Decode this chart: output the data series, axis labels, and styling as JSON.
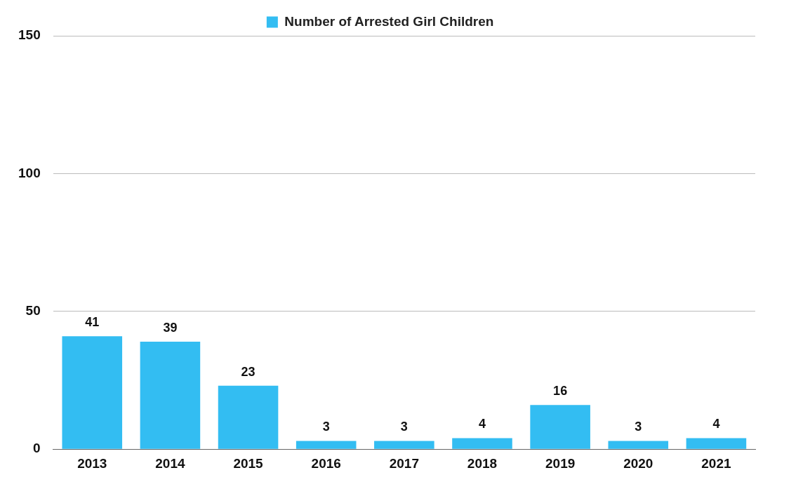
{
  "chart_data": {
    "type": "bar",
    "categories": [
      "2013",
      "2014",
      "2015",
      "2016",
      "2017",
      "2018",
      "2019",
      "2020",
      "2021"
    ],
    "series": [
      {
        "name": "Number of Arrested Girl Children",
        "color": "#33bdf2",
        "values": [
          41,
          39,
          23,
          3,
          3,
          4,
          16,
          3,
          4
        ]
      }
    ],
    "ylim": [
      0,
      150
    ],
    "yticks": [
      0,
      50,
      100,
      150
    ],
    "grid": "y",
    "legend": "top",
    "data_labels": true
  }
}
